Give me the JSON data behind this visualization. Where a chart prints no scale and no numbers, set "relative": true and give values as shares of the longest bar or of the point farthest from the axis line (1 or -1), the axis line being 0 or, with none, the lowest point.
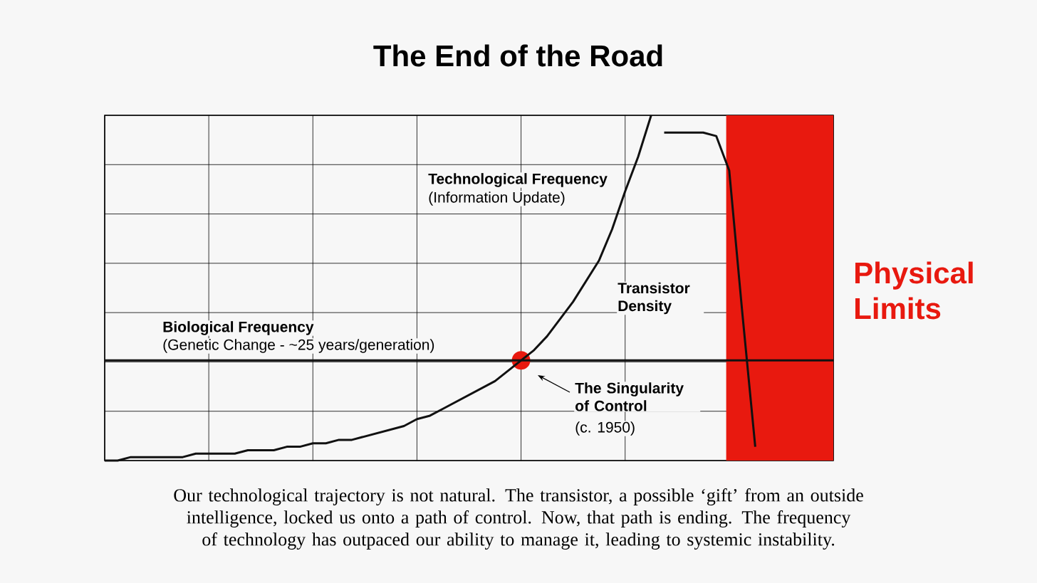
{
  "chart_data": {
    "type": "line",
    "title": "The End of the Road",
    "relative": true,
    "grid": true,
    "marker": "none",
    "categories": [
      null,
      null,
      null,
      null,
      null,
      null,
      null,
      null,
      null,
      null,
      null,
      null,
      null,
      null,
      null,
      null,
      null,
      null,
      null,
      null,
      null,
      null,
      null,
      null,
      null,
      null,
      null,
      null,
      null,
      null,
      null,
      null,
      null,
      null,
      null,
      null,
      null,
      null,
      null,
      null,
      null,
      null,
      null,
      null,
      null,
      null,
      null,
      null,
      null,
      null,
      null,
      null,
      null,
      null,
      null,
      null,
      null
    ],
    "series": [
      {
        "color": "#111111",
        "values": [
          0,
          0,
          0.01,
          0.01,
          0.01,
          0.01,
          0.01,
          0.02,
          0.02,
          0.02,
          0.02,
          0.03,
          0.03,
          0.03,
          0.04,
          0.04,
          0.05,
          0.05,
          0.06,
          0.06,
          0.07,
          0.08,
          0.09,
          0.1,
          0.12,
          0.13,
          0.15,
          0.17,
          0.19,
          0.21,
          0.23,
          0.26,
          0.29,
          0.32,
          0.36,
          0.41,
          0.46,
          0.52,
          0.58,
          0.67,
          0.78,
          0.88,
          1.0,
          null,
          null,
          null,
          null,
          null,
          null,
          null,
          null,
          null,
          null,
          null,
          null,
          null,
          null
        ]
      },
      {
        "color": "#111111",
        "values": [
          null,
          null,
          null,
          null,
          null,
          null,
          null,
          null,
          null,
          null,
          null,
          null,
          null,
          null,
          null,
          null,
          null,
          null,
          null,
          null,
          null,
          null,
          null,
          null,
          null,
          null,
          null,
          null,
          null,
          null,
          null,
          null,
          null,
          null,
          null,
          null,
          null,
          null,
          null,
          null,
          null,
          null,
          null,
          0.95,
          0.95,
          0.95,
          0.95,
          0.94,
          0.84,
          0.43,
          0.04,
          null,
          null,
          null,
          null,
          null,
          null
        ]
      },
      {
        "color": "#111111",
        "values": [
          0.29,
          0.29,
          0.29,
          0.29,
          0.29,
          0.29,
          0.29,
          0.29,
          0.29,
          0.29,
          0.29,
          0.29,
          0.29,
          0.29,
          0.29,
          0.29,
          0.29,
          0.29,
          0.29,
          0.29,
          0.29,
          0.29,
          0.29,
          0.29,
          0.29,
          0.29,
          0.29,
          0.29,
          0.29,
          0.29,
          0.29,
          0.29,
          0.29,
          0.29,
          0.29,
          0.29,
          0.29,
          0.29,
          0.29,
          0.29,
          0.29,
          0.29,
          0.29,
          0.29,
          0.29,
          0.29,
          0.29,
          0.29,
          0.29,
          0.29,
          0.29,
          0.29,
          0.29,
          0.29,
          0.29,
          0.29,
          0.29
        ]
      }
    ],
    "annotations": [
      "Physical Limits",
      "Technological Frequency",
      "(Information Update)",
      "Transistor Density",
      "Biological Frequency",
      "(Genetic Change - ~25 years/generation)",
      "The Singularity of Control",
      "(c. 1950)",
      "Our technological trajectory is not natural. The transistor, a possible ‘gift’ from an outside intelligence, locked us onto a path of control. Now, that path is ending. The frequency of technology has outpaced our ability to manage it, leading to systemic instability."
    ]
  }
}
